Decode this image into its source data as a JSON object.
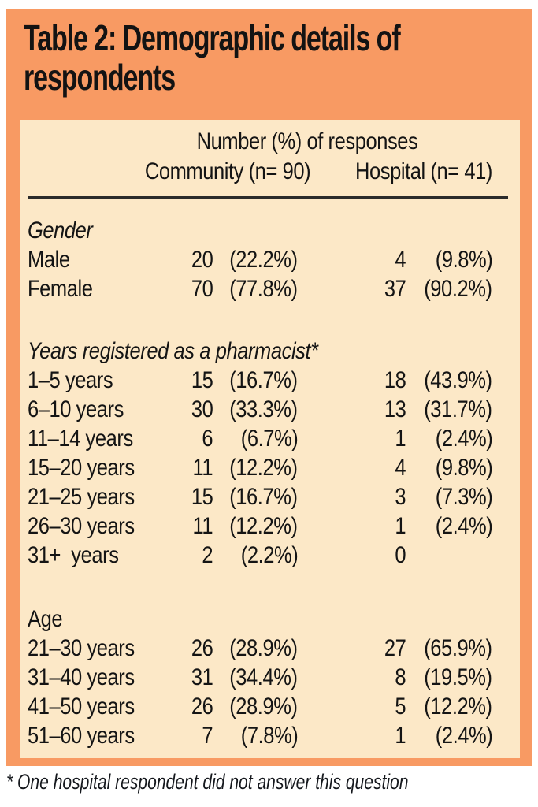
{
  "title": {
    "full": "Table 2: Demographic details of respondents",
    "line1": "Table 2: Demographic details of",
    "line2": "respondents"
  },
  "header": {
    "group": "Number (%) of responses",
    "col_community": "Community (n= 90)",
    "col_hospital": "Hospital (n= 41)"
  },
  "sections": [
    {
      "heading": "Gender",
      "rows": [
        {
          "label": "Male",
          "c_n": "20",
          "c_pct": "(22.2%)",
          "h_n": "4",
          "h_pct": "(9.8%)"
        },
        {
          "label": "Female",
          "c_n": "70",
          "c_pct": "(77.8%)",
          "h_n": "37",
          "h_pct": "(90.2%)"
        }
      ]
    },
    {
      "heading": "Years registered as a pharmacist*",
      "rows": [
        {
          "label": "1–5 years",
          "c_n": "15",
          "c_pct": "(16.7%)",
          "h_n": "18",
          "h_pct": "(43.9%)"
        },
        {
          "label": "6–10 years",
          "c_n": "30",
          "c_pct": "(33.3%)",
          "h_n": "13",
          "h_pct": "(31.7%)"
        },
        {
          "label": "11–14 years",
          "c_n": "6",
          "c_pct": "(6.7%)",
          "h_n": "1",
          "h_pct": "(2.4%)"
        },
        {
          "label": "15–20 years",
          "c_n": "11",
          "c_pct": "(12.2%)",
          "h_n": "4",
          "h_pct": "(9.8%)"
        },
        {
          "label": "21–25 years",
          "c_n": "15",
          "c_pct": "(16.7%)",
          "h_n": "3",
          "h_pct": "(7.3%)"
        },
        {
          "label": "26–30 years",
          "c_n": "11",
          "c_pct": "(12.2%)",
          "h_n": "1",
          "h_pct": "(2.4%)"
        },
        {
          "label": "31+  years",
          "c_n": "2",
          "c_pct": "(2.2%)",
          "h_n": "0",
          "h_pct": ""
        }
      ]
    },
    {
      "heading": "Age",
      "rows": [
        {
          "label": "21–30 years",
          "c_n": "26",
          "c_pct": "(28.9%)",
          "h_n": "27",
          "h_pct": "(65.9%)"
        },
        {
          "label": "31–40 years",
          "c_n": "31",
          "c_pct": "(34.4%)",
          "h_n": "8",
          "h_pct": "(19.5%)"
        },
        {
          "label": "41–50 years",
          "c_n": "26",
          "c_pct": "(28.9%)",
          "h_n": "5",
          "h_pct": "(12.2%)"
        },
        {
          "label": "51–60 years",
          "c_n": "7",
          "c_pct": "(7.8%)",
          "h_n": "1",
          "h_pct": "(2.4%)"
        }
      ]
    }
  ],
  "footnote": "* One hospital respondent did not answer this question",
  "colors": {
    "frame_orange": "#f89a63",
    "panel_peach": "#fce8c7",
    "text": "#141414",
    "rule": "#2b2b2b"
  }
}
